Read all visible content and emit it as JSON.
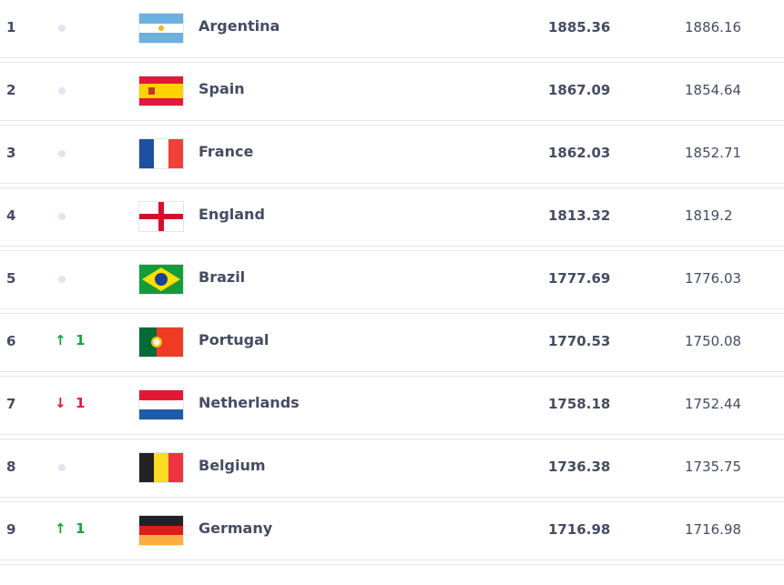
{
  "rankings": [
    {
      "rank": "1",
      "move": "none",
      "change": "",
      "country": "Argentina",
      "flag": "argentina-flag",
      "points": "1885.36",
      "previous": "1886.16"
    },
    {
      "rank": "2",
      "move": "none",
      "change": "",
      "country": "Spain",
      "flag": "spain-flag",
      "points": "1867.09",
      "previous": "1854.64"
    },
    {
      "rank": "3",
      "move": "none",
      "change": "",
      "country": "France",
      "flag": "france-flag",
      "points": "1862.03",
      "previous": "1852.71"
    },
    {
      "rank": "4",
      "move": "none",
      "change": "",
      "country": "England",
      "flag": "england-flag",
      "points": "1813.32",
      "previous": "1819.2"
    },
    {
      "rank": "5",
      "move": "none",
      "change": "",
      "country": "Brazil",
      "flag": "brazil-flag",
      "points": "1777.69",
      "previous": "1776.03"
    },
    {
      "rank": "6",
      "move": "up",
      "change": "1",
      "country": "Portugal",
      "flag": "portugal-flag",
      "points": "1770.53",
      "previous": "1750.08"
    },
    {
      "rank": "7",
      "move": "down",
      "change": "1",
      "country": "Netherlands",
      "flag": "netherlands-flag",
      "points": "1758.18",
      "previous": "1752.44"
    },
    {
      "rank": "8",
      "move": "none",
      "change": "",
      "country": "Belgium",
      "flag": "belgium-flag",
      "points": "1736.38",
      "previous": "1735.75"
    },
    {
      "rank": "9",
      "move": "up",
      "change": "1",
      "country": "Germany",
      "flag": "germany-flag",
      "points": "1716.98",
      "previous": "1716.98"
    }
  ],
  "colors": {
    "up": "#13a538",
    "down": "#e0163a",
    "text": "#454c63"
  }
}
